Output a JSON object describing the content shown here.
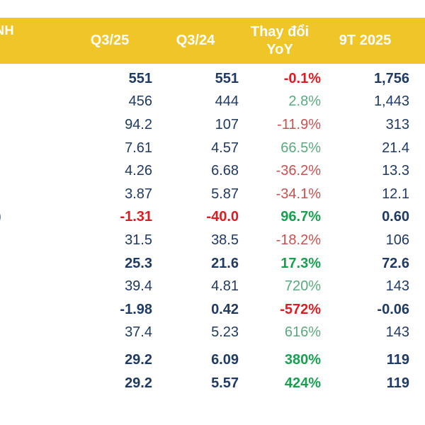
{
  "colors": {
    "header_bg": "#f0c528",
    "header_text": "#ffffff",
    "navy": "#1f3a63",
    "red": "#c9504e",
    "red_bold": "#df1b21",
    "green": "#57aa7e",
    "green_bold": "#17a14f"
  },
  "table": {
    "header_fragment": "NH",
    "row7_label_fragment": ")",
    "columns": [
      "Q3/25",
      "Q3/24",
      {
        "line1": "Thay đổi",
        "line2": "YoY"
      },
      "9T 2025"
    ],
    "rows": [
      {
        "label_fragment": "",
        "values": [
          "551",
          "551",
          "-0.1%",
          "1,756"
        ],
        "colors": [
          "navy",
          "navy",
          "red_bold",
          "navy"
        ],
        "bold": true,
        "gap_before": false
      },
      {
        "label_fragment": "",
        "values": [
          "456",
          "444",
          "2.8%",
          "1,443"
        ],
        "colors": [
          "navy",
          "navy",
          "green",
          "navy"
        ],
        "bold": false,
        "gap_before": false
      },
      {
        "label_fragment": "",
        "values": [
          "94.2",
          "107",
          "-11.9%",
          "313"
        ],
        "colors": [
          "navy",
          "navy",
          "red",
          "navy"
        ],
        "bold": false,
        "gap_before": false
      },
      {
        "label_fragment": "",
        "values": [
          "7.61",
          "4.57",
          "66.5%",
          "21.4"
        ],
        "colors": [
          "navy",
          "navy",
          "green",
          "navy"
        ],
        "bold": false,
        "gap_before": false
      },
      {
        "label_fragment": "",
        "values": [
          "4.26",
          "6.68",
          "-36.2%",
          "13.3"
        ],
        "colors": [
          "navy",
          "navy",
          "red",
          "navy"
        ],
        "bold": false,
        "gap_before": false
      },
      {
        "label_fragment": "",
        "values": [
          "3.87",
          "5.87",
          "-34.1%",
          "12.1"
        ],
        "colors": [
          "navy",
          "navy",
          "red",
          "navy"
        ],
        "bold": false,
        "gap_before": false
      },
      {
        "label_fragment": ")",
        "values": [
          "-1.31",
          "-40.0",
          "96.7%",
          "0.60"
        ],
        "colors": [
          "red_bold",
          "red_bold",
          "green_bold",
          "navy"
        ],
        "bold": true,
        "gap_before": false
      },
      {
        "label_fragment": "",
        "values": [
          "31.5",
          "38.5",
          "-18.2%",
          "106"
        ],
        "colors": [
          "navy",
          "navy",
          "red",
          "navy"
        ],
        "bold": false,
        "gap_before": false
      },
      {
        "label_fragment": "",
        "values": [
          "25.3",
          "21.6",
          "17.3%",
          "72.6"
        ],
        "colors": [
          "navy",
          "navy",
          "green_bold",
          "navy"
        ],
        "bold": true,
        "gap_before": false
      },
      {
        "label_fragment": "",
        "values": [
          "39.4",
          "4.81",
          "720%",
          "143"
        ],
        "colors": [
          "navy",
          "navy",
          "green",
          "navy"
        ],
        "bold": false,
        "gap_before": false
      },
      {
        "label_fragment": "",
        "values": [
          "-1.98",
          "0.42",
          "-572%",
          "-0.06"
        ],
        "colors": [
          "navy",
          "navy",
          "red_bold",
          "navy"
        ],
        "bold": true,
        "gap_before": false
      },
      {
        "label_fragment": "",
        "values": [
          "37.4",
          "5.23",
          "616%",
          "143"
        ],
        "colors": [
          "navy",
          "navy",
          "green",
          "navy"
        ],
        "bold": false,
        "gap_before": false
      },
      {
        "label_fragment": "",
        "values": [
          "29.2",
          "6.09",
          "380%",
          "119"
        ],
        "colors": [
          "navy",
          "navy",
          "green_bold",
          "navy"
        ],
        "bold": true,
        "gap_before": true
      },
      {
        "label_fragment": "",
        "values": [
          "29.2",
          "5.57",
          "424%",
          "119"
        ],
        "colors": [
          "navy",
          "navy",
          "green_bold",
          "navy"
        ],
        "bold": true,
        "gap_before": false
      }
    ]
  },
  "chart_data": {
    "type": "table",
    "title": "",
    "columns": [
      "Q3/25",
      "Q3/24",
      "Thay đổi YoY",
      "9T 2025"
    ],
    "rows": [
      [
        "551",
        "551",
        "-0.1%",
        "1,756"
      ],
      [
        "456",
        "444",
        "2.8%",
        "1,443"
      ],
      [
        "94.2",
        "107",
        "-11.9%",
        "313"
      ],
      [
        "7.61",
        "4.57",
        "66.5%",
        "21.4"
      ],
      [
        "4.26",
        "6.68",
        "-36.2%",
        "13.3"
      ],
      [
        "3.87",
        "5.87",
        "-34.1%",
        "12.1"
      ],
      [
        "-1.31",
        "-40.0",
        "96.7%",
        "0.60"
      ],
      [
        "31.5",
        "38.5",
        "-18.2%",
        "106"
      ],
      [
        "25.3",
        "21.6",
        "17.3%",
        "72.6"
      ],
      [
        "39.4",
        "4.81",
        "720%",
        "143"
      ],
      [
        "-1.98",
        "0.42",
        "-572%",
        "-0.06"
      ],
      [
        "37.4",
        "5.23",
        "616%",
        "143"
      ],
      [
        "29.2",
        "6.09",
        "380%",
        "119"
      ],
      [
        "29.2",
        "5.57",
        "424%",
        "119"
      ]
    ],
    "layout_hints": {
      "yoy_color_coding": "green = positive change, red = negative change",
      "bold_rows_indices": [
        0,
        6,
        8,
        10,
        12,
        13
      ],
      "header_background": "#f0c528",
      "left_label_column_cropped": true
    }
  }
}
